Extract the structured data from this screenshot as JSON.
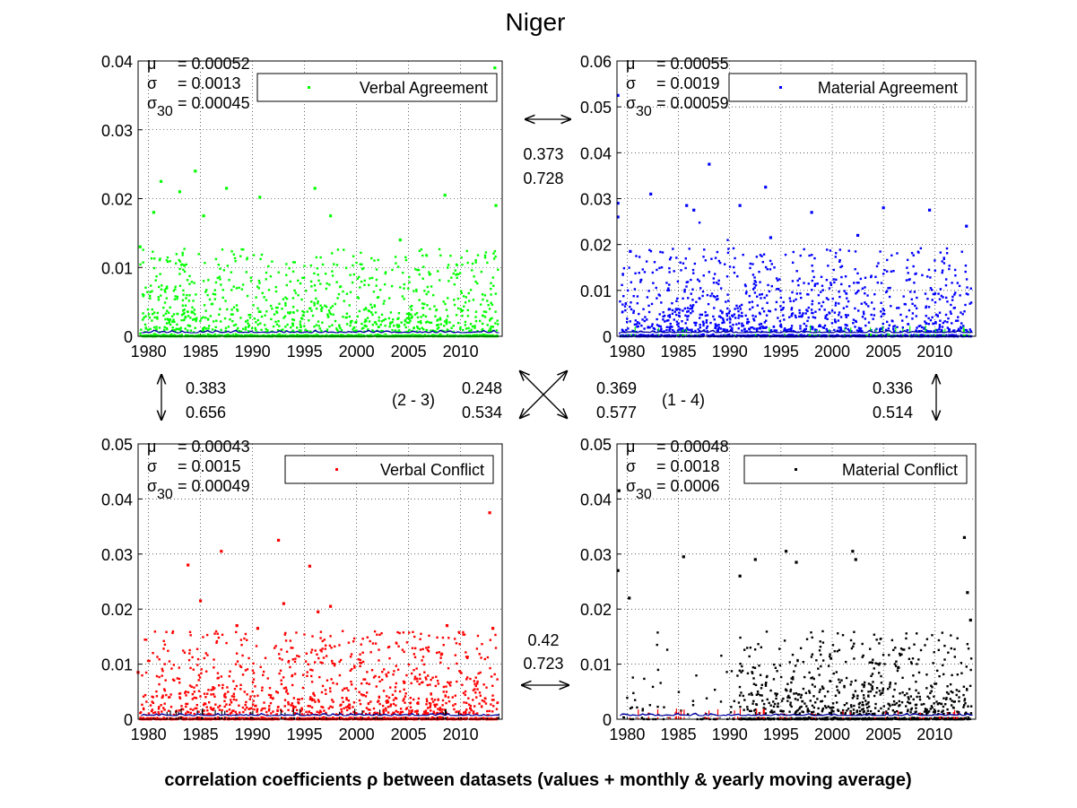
{
  "title": "Niger",
  "footer": "correlation coefficients ρ between datasets (values + monthly & yearly moving average)",
  "correlations": {
    "top": {
      "a": "0.373",
      "b": "0.728"
    },
    "bottom": {
      "a": "0.42",
      "b": "0.723"
    },
    "left": {
      "a": "0.383",
      "b": "0.656"
    },
    "right": {
      "a": "0.336",
      "b": "0.514"
    },
    "diag_23": {
      "label": "(2 - 3)",
      "a": "0.248",
      "b": "0.534"
    },
    "diag_14": {
      "label": "(1 - 4)",
      "a": "0.369",
      "b": "0.577"
    }
  },
  "colors": {
    "green": "#00ff00",
    "blue": "#0000ff",
    "red": "#ff0000",
    "black": "#000000",
    "average": "#0000a0",
    "white_line": "#ffffff"
  },
  "chart_data": [
    {
      "type": "scatter",
      "legend": "Verbal Agreement",
      "color": "#00ff00",
      "stats": {
        "mu_label": "μ",
        "mu": "= 0.00052",
        "sigma_label": "σ",
        "sigma": "= 0.0013",
        "sigma30_label": "σ30",
        "sigma30": "= 0.00045"
      },
      "xlim": [
        1979,
        2014
      ],
      "ylim": [
        0,
        0.04
      ],
      "yticks": [
        "0",
        "0.01",
        "0.02",
        "0.03",
        "0.04"
      ],
      "ytick_values": [
        0,
        0.01,
        0.02,
        0.03,
        0.04
      ],
      "xticks": [
        "1980",
        "1985",
        "1990",
        "1995",
        "2000",
        "2005",
        "2010"
      ],
      "grid": true,
      "outliers": [
        [
          1979.2,
          0.013
        ],
        [
          1980.5,
          0.018
        ],
        [
          1981.2,
          0.0225
        ],
        [
          1983.0,
          0.021
        ],
        [
          1984.5,
          0.024
        ],
        [
          1985.3,
          0.0175
        ],
        [
          1987.5,
          0.0215
        ],
        [
          1990.7,
          0.0202
        ],
        [
          1996.0,
          0.0215
        ],
        [
          1997.5,
          0.0175
        ],
        [
          2004.2,
          0.014
        ],
        [
          2008.5,
          0.0205
        ],
        [
          2013.3,
          0.039
        ],
        [
          2013.4,
          0.019
        ]
      ]
    },
    {
      "type": "scatter",
      "legend": "Material Agreement",
      "color": "#0000ff",
      "stats": {
        "mu_label": "μ",
        "mu": "= 0.00055",
        "sigma_label": "σ",
        "sigma": "= 0.0019",
        "sigma30_label": "σ30",
        "sigma30": "= 0.00059"
      },
      "xlim": [
        1979,
        2014
      ],
      "ylim": [
        0,
        0.06
      ],
      "yticks": [
        "0",
        "0.01",
        "0.02",
        "0.03",
        "0.04",
        "0.05",
        "0.06"
      ],
      "ytick_values": [
        0,
        0.01,
        0.02,
        0.03,
        0.04,
        0.05,
        0.06
      ],
      "xticks": [
        "1980",
        "1985",
        "1990",
        "1995",
        "2000",
        "2005",
        "2010"
      ],
      "grid": true,
      "outliers": [
        [
          1979.1,
          0.0525
        ],
        [
          1979.1,
          0.029
        ],
        [
          1979.1,
          0.026
        ],
        [
          1980.3,
          0.0185
        ],
        [
          1982.3,
          0.031
        ],
        [
          1985.8,
          0.0285
        ],
        [
          1986.5,
          0.0275
        ],
        [
          1988.0,
          0.0375
        ],
        [
          1991.0,
          0.0285
        ],
        [
          1993.5,
          0.0325
        ],
        [
          1994.0,
          0.0215
        ],
        [
          1998.0,
          0.027
        ],
        [
          2002.5,
          0.022
        ],
        [
          2005.0,
          0.028
        ],
        [
          2009.5,
          0.0275
        ],
        [
          2013.1,
          0.024
        ]
      ]
    },
    {
      "type": "scatter",
      "legend": "Verbal Conflict",
      "color": "#ff0000",
      "stats": {
        "mu_label": "μ",
        "mu": "= 0.00043",
        "sigma_label": "σ",
        "sigma": "= 0.0015",
        "sigma30_label": "σ30",
        "sigma30": "= 0.00049"
      },
      "xlim": [
        1979,
        2014
      ],
      "ylim": [
        0,
        0.05
      ],
      "yticks": [
        "0",
        "0.01",
        "0.02",
        "0.03",
        "0.04",
        "0.05"
      ],
      "ytick_values": [
        0,
        0.01,
        0.02,
        0.03,
        0.04,
        0.05
      ],
      "xticks": [
        "1980",
        "1985",
        "1990",
        "1995",
        "2000",
        "2005",
        "2010"
      ],
      "grid": true,
      "outliers": [
        [
          1979.0,
          0.0085
        ],
        [
          1983.8,
          0.028
        ],
        [
          1985.0,
          0.0215
        ],
        [
          1987.0,
          0.0305
        ],
        [
          1988.5,
          0.017
        ],
        [
          1990.5,
          0.0165
        ],
        [
          1992.5,
          0.0325
        ],
        [
          1993.0,
          0.021
        ],
        [
          1995.5,
          0.0278
        ],
        [
          1996.3,
          0.0195
        ],
        [
          1997.5,
          0.0205
        ],
        [
          2008.7,
          0.017
        ],
        [
          2012.8,
          0.0375
        ],
        [
          2013.1,
          0.0165
        ]
      ]
    },
    {
      "type": "scatter",
      "legend": "Material Conflict",
      "color": "#000000",
      "stats": {
        "mu_label": "μ",
        "mu": "= 0.00048",
        "sigma_label": "σ",
        "sigma": "= 0.0018",
        "sigma30_label": "σ30",
        "sigma30": "= 0.0006"
      },
      "xlim": [
        1979,
        2014
      ],
      "ylim": [
        0,
        0.05
      ],
      "yticks": [
        "0",
        "0.01",
        "0.02",
        "0.03",
        "0.04",
        "0.05"
      ],
      "ytick_values": [
        0,
        0.01,
        0.02,
        0.03,
        0.04,
        0.05
      ],
      "xticks": [
        "1980",
        "1985",
        "1990",
        "1995",
        "2000",
        "2005",
        "2010"
      ],
      "grid": true,
      "outliers": [
        [
          1979.1,
          0.027
        ],
        [
          1979.2,
          0.0415
        ],
        [
          1980.2,
          0.022
        ],
        [
          1985.5,
          0.0295
        ],
        [
          1991.0,
          0.026
        ],
        [
          1992.5,
          0.029
        ],
        [
          1995.5,
          0.0305
        ],
        [
          1996.5,
          0.0285
        ],
        [
          2002.0,
          0.0305
        ],
        [
          2002.3,
          0.029
        ],
        [
          2012.9,
          0.033
        ],
        [
          2013.2,
          0.023
        ],
        [
          2013.5,
          0.018
        ]
      ]
    }
  ]
}
